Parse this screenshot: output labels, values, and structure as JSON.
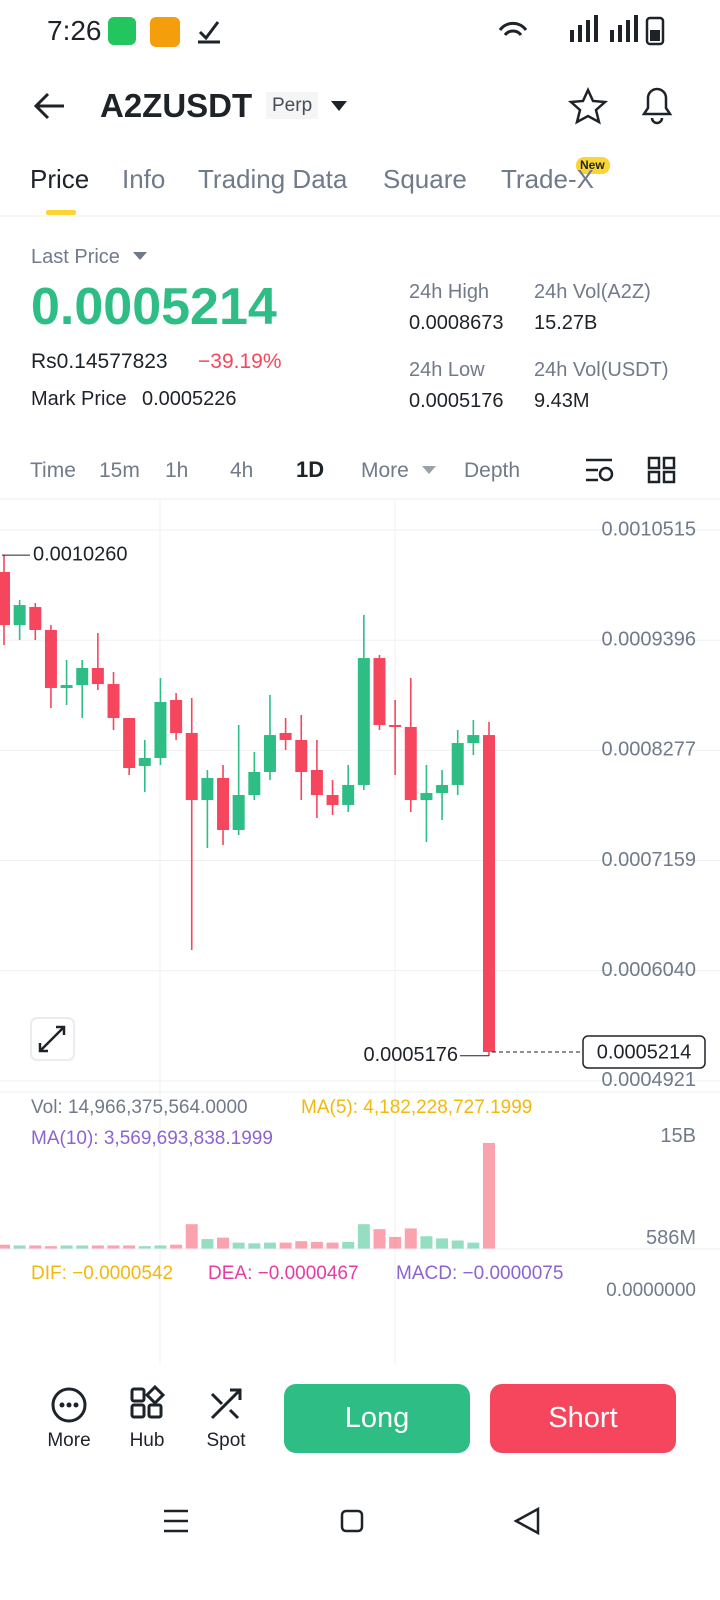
{
  "status_bar": {
    "time": "7:26"
  },
  "header": {
    "symbol": "A2ZUSDT",
    "tag": "Perp"
  },
  "tabs": [
    "Price",
    "Info",
    "Trading Data",
    "Square",
    "Trade-X"
  ],
  "tab_badge": "New",
  "price": {
    "last_price_label": "Last Price",
    "last_price": "0.0005214",
    "local_price": "Rs0.14577823",
    "change": "−39.19%",
    "mark_price_label": "Mark Price",
    "mark_price": "0.0005226"
  },
  "stats": [
    {
      "label": "24h High",
      "value": "0.0008673"
    },
    {
      "label": "24h Vol(A2Z)",
      "value": "15.27B"
    },
    {
      "label": "24h Low",
      "value": "0.0005176"
    },
    {
      "label": "24h Vol(USDT)",
      "value": "9.43M"
    }
  ],
  "intervals": [
    "Time",
    "15m",
    "1h",
    "4h",
    "1D",
    "More",
    "Depth"
  ],
  "indicators": {
    "vol": "Vol: 14,966,375,564.0000",
    "ma5": "MA(5): 4,182,228,727.1999",
    "ma10": "MA(10): 3,569,693,838.1999",
    "dif": "DIF: −0.0000542",
    "dea": "DEA: −0.0000467",
    "macd": "MACD: −0.0000075",
    "macd_zero": "0.0000000"
  },
  "actions": {
    "more": "More",
    "hub": "Hub",
    "spot": "Spot",
    "long": "Long",
    "short": "Short"
  },
  "chart_data": [
    {
      "type": "candlestick",
      "up_color": "#2ebd85",
      "down_color": "#f6465d",
      "open": [
        0.0010089,
        0.000955,
        0.0009733,
        0.00095,
        0.0008911,
        0.0008941,
        0.0009114,
        0.0008951,
        0.0008606,
        0.0008119,
        0.00082,
        0.0008789,
        0.0008454,
        0.0007773,
        0.0007997,
        0.0007469,
        0.0007824,
        0.0008058,
        0.0008454,
        0.0008383,
        0.0008078,
        0.0007824,
        0.0007723,
        0.0007926,
        0.0009215,
        0.0008535,
        0.0008515,
        0.0007773,
        0.0007844,
        0.0007926,
        0.0008352,
        0.0008433
      ],
      "high": [
        0.001026,
        0.0009804,
        0.0009774,
        0.000955,
        0.0009195,
        0.0009195,
        0.0009469,
        0.0009073,
        0.0008606,
        0.0008383,
        0.0009012,
        0.000886,
        0.0008809,
        0.0008078,
        0.0008129,
        0.0008535,
        0.0008261,
        0.000884,
        0.0008606,
        0.0008637,
        0.0008383,
        0.0007976,
        0.0008129,
        0.0009652,
        0.0009246,
        0.0008789,
        0.0009012,
        0.0008129,
        0.0008078,
        0.0008484,
        0.0008586,
        0.0008565
      ],
      "low": [
        0.0009347,
        0.0009398,
        0.0009398,
        0.0008708,
        0.0008738,
        0.0008606,
        0.000889,
        0.0008484,
        0.0008027,
        0.0007855,
        0.0008129,
        0.0008383,
        0.000625,
        0.0007286,
        0.0007316,
        0.0007418,
        0.0007773,
        0.0007976,
        0.0008281,
        0.0007773,
        0.0007591,
        0.0007621,
        0.0007652,
        0.0007875,
        0.0008484,
        0.0008027,
        0.0007652,
        0.0007347,
        0.000757,
        0.0007824,
        0.000823,
        0.0005176
      ],
      "close": [
        0.000955,
        0.0009753,
        0.00095,
        0.0008911,
        0.0008941,
        0.0009114,
        0.0008951,
        0.0008606,
        0.0008098,
        0.00082,
        0.0008769,
        0.0008454,
        0.0007773,
        0.0007997,
        0.0007469,
        0.0007824,
        0.0008058,
        0.0008433,
        0.0008383,
        0.0008058,
        0.0007824,
        0.0007723,
        0.0007926,
        0.0009215,
        0.0008535,
        0.0008515,
        0.0007773,
        0.0007844,
        0.0007926,
        0.0008352,
        0.0008433,
        0.0005214
      ],
      "ylim": [
        0.0004808,
        0.001082
      ],
      "yticks": [
        {
          "value": 0.0010515,
          "label": "0.0010515"
        },
        {
          "value": 0.0009396,
          "label": "0.0009396"
        },
        {
          "value": 0.0008277,
          "label": "0.0008277"
        },
        {
          "value": 0.0007159,
          "label": "0.0007159"
        },
        {
          "value": 0.000604,
          "label": "0.0006040"
        },
        {
          "value": 0.0004921,
          "label": "0.0004921"
        }
      ],
      "high_marker": {
        "value": 0.001026,
        "label": "0.0010260"
      },
      "low_marker": {
        "value": 0.0005176,
        "label": "0.0005176"
      },
      "last_marker": {
        "value": 0.0005214,
        "label": "0.0005214"
      },
      "grid": true
    },
    {
      "type": "bar",
      "values": [
        600000000,
        500000000,
        500000000,
        400000000,
        500000000,
        500000000,
        500000000,
        500000000,
        500000000,
        400000000,
        500000000,
        600000000,
        3500000000,
        1400000000,
        1600000000,
        900000000,
        800000000,
        900000000,
        900000000,
        1100000000,
        1000000000,
        900000000,
        1000000000,
        3500000000,
        2800000000,
        1700000000,
        2900000000,
        1800000000,
        1500000000,
        1200000000,
        900000000,
        14966375564
      ],
      "ylim": [
        0,
        17500000000
      ],
      "yticks": [
        {
          "value": 15000000000,
          "label": "15B"
        },
        {
          "value": 586000000,
          "label": "586M"
        }
      ]
    }
  ]
}
